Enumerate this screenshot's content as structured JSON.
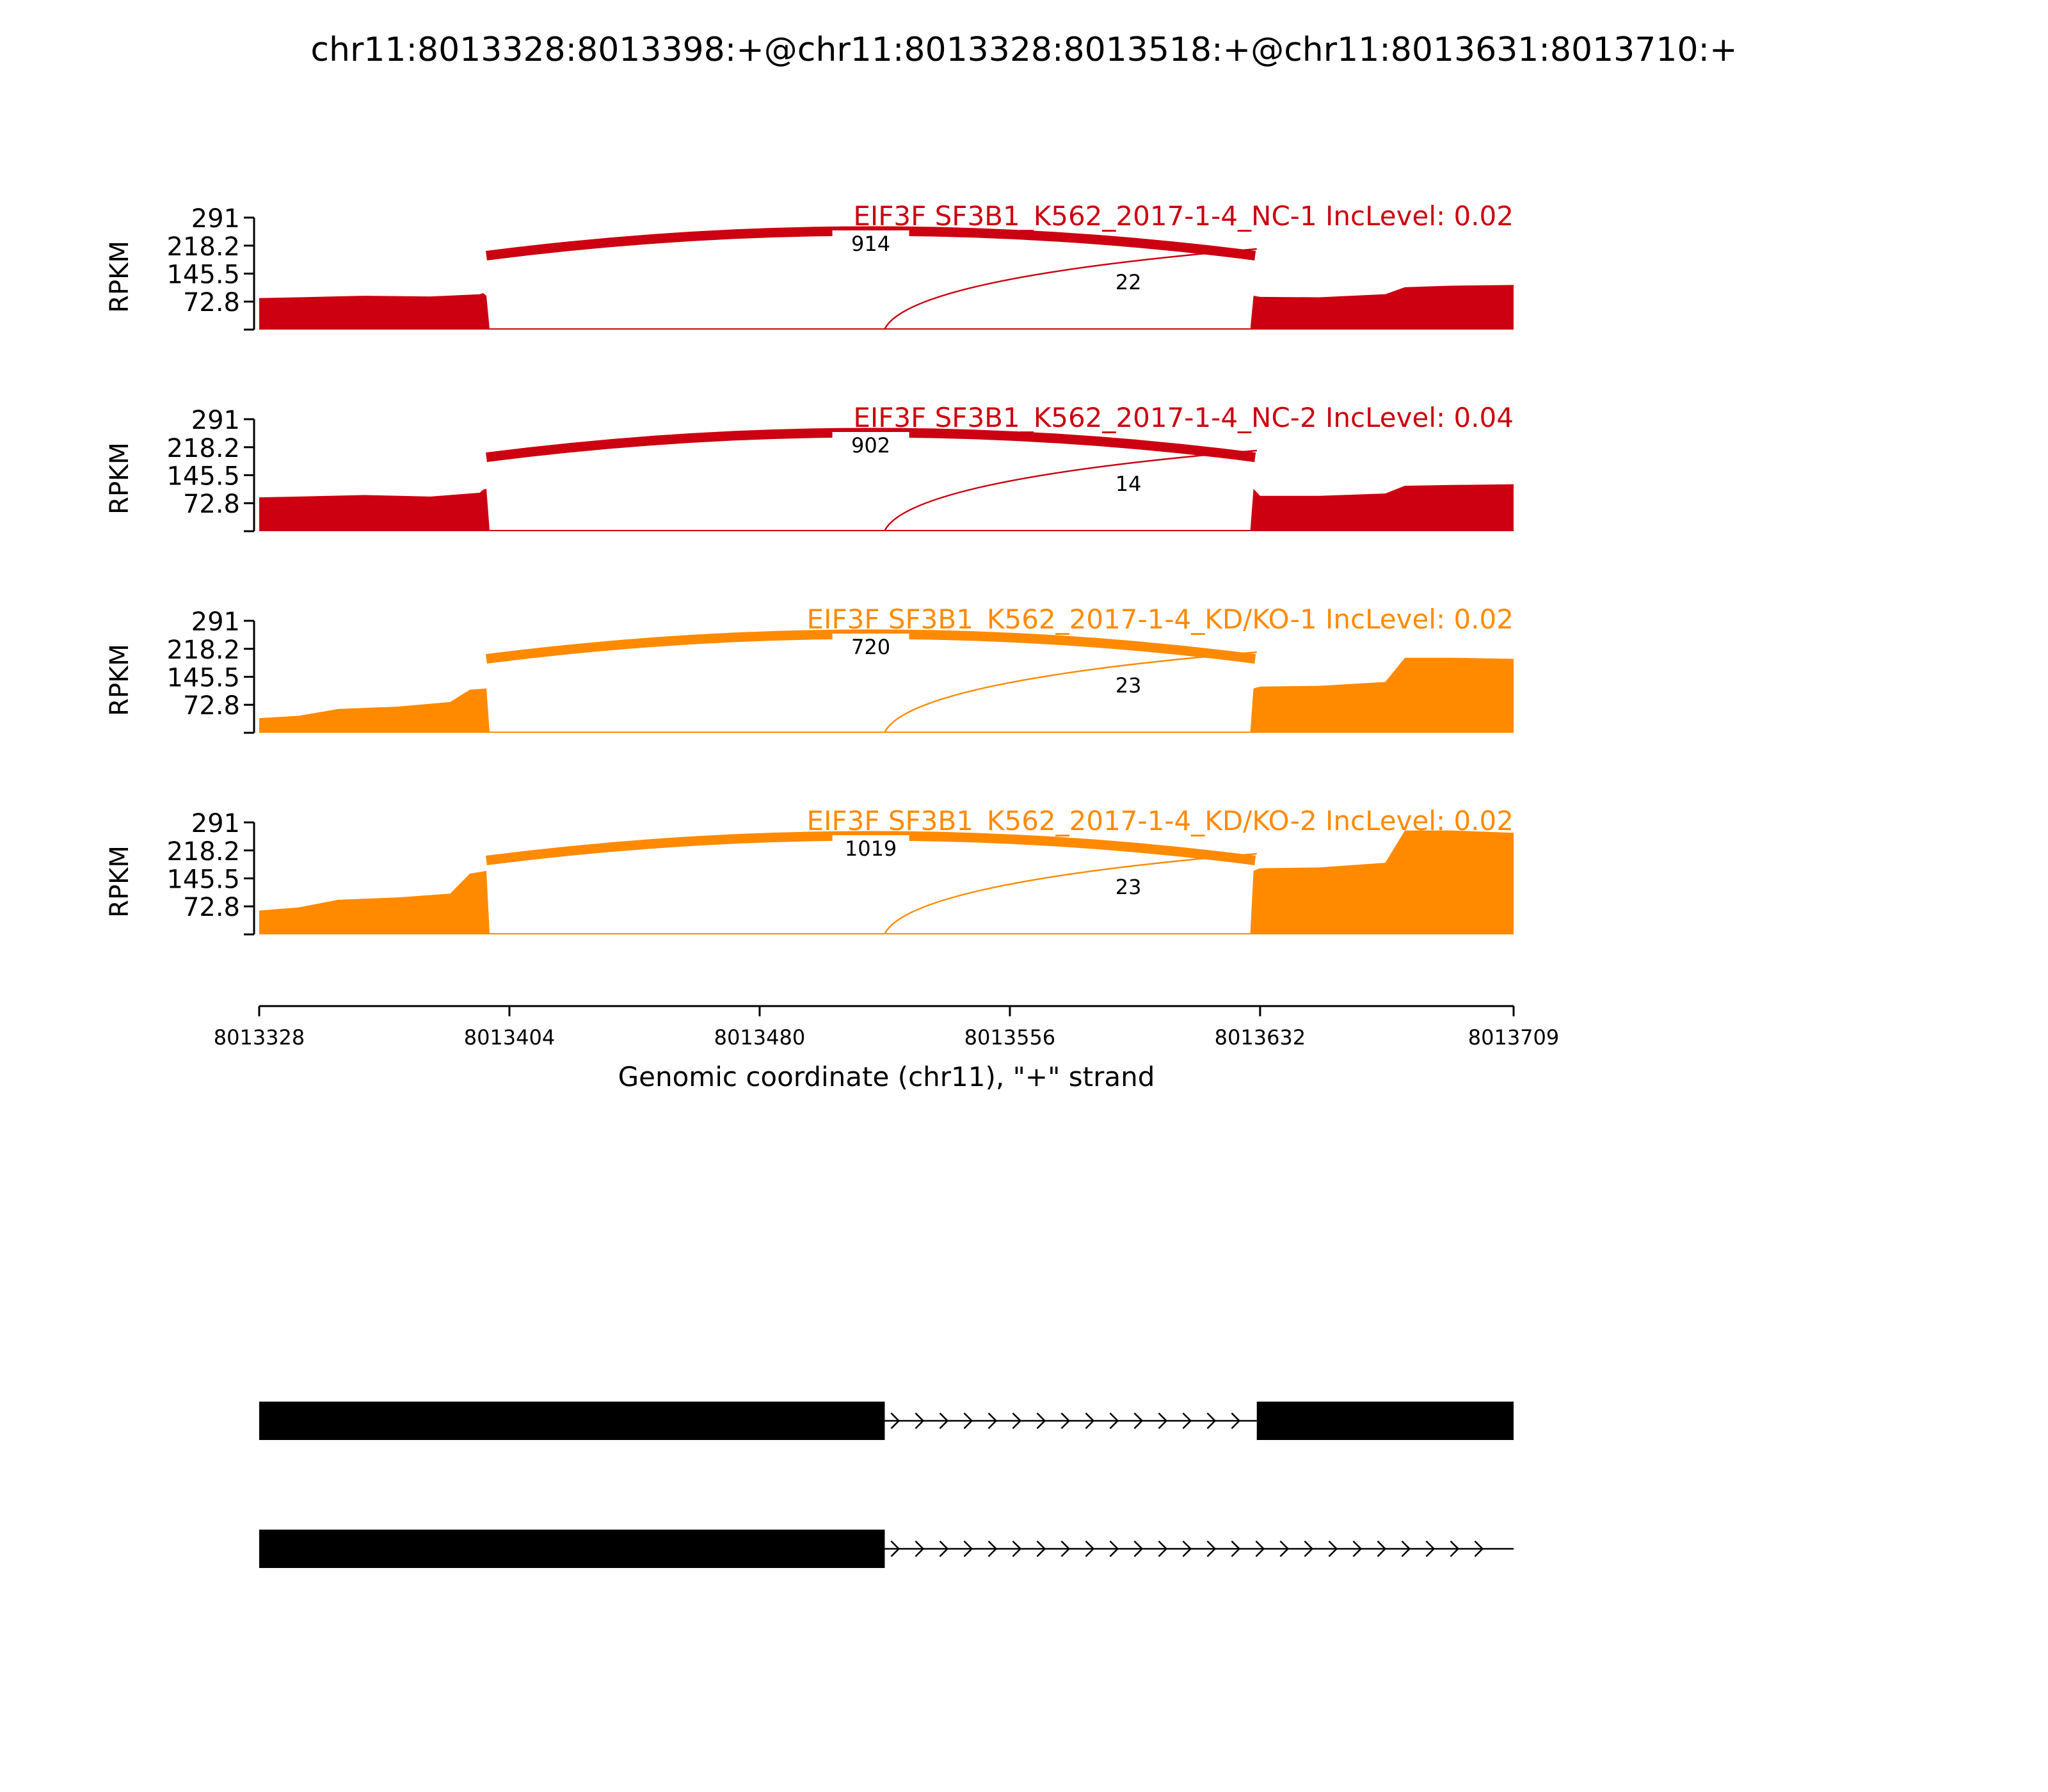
{
  "title": "chr11:8013328:8013398:+@chr11:8013328:8013518:+@chr11:8013631:8013710:+",
  "chart_data": {
    "type": "area",
    "x_axis": {
      "label": "Genomic coordinate (chr11), \"+\" strand",
      "range": [
        8013328,
        8013709
      ],
      "ticks": [
        8013328,
        8013404,
        8013480,
        8013556,
        8013632,
        8013709
      ],
      "tick_labels": [
        "8013328",
        "8013404",
        "8013480",
        "8013556",
        "8013632",
        "8013709"
      ]
    },
    "y_axis": {
      "label": "RPKM",
      "range": [
        0,
        291
      ],
      "ticks": [
        72.8,
        145.5,
        218.2,
        291
      ],
      "tick_labels": [
        "72.8",
        "145.5",
        "218.2",
        "291"
      ]
    },
    "tracks": [
      {
        "name": "EIF3F SF3B1_K562_2017-1-4_NC-1 IncLevel: 0.02",
        "color": "#cc0010",
        "coverage_x": [
          8013328,
          8013340,
          8013360,
          8013380,
          8013395,
          8013396,
          8013397,
          8013398,
          8013518,
          8013629,
          8013630,
          8013632,
          8013650,
          8013670,
          8013676,
          8013690,
          8013709
        ],
        "coverage_y": [
          82,
          84,
          88,
          86,
          92,
          95,
          88,
          0,
          0,
          0,
          88,
          85,
          84,
          92,
          110,
          114,
          116
        ],
        "junctions": [
          {
            "count": "914",
            "start": 8013398,
            "end": 8013631
          },
          {
            "count": "22",
            "start": 8013518,
            "end": 8013631
          }
        ]
      },
      {
        "name": "EIF3F SF3B1_K562_2017-1-4_NC-2 IncLevel: 0.04",
        "color": "#cc0010",
        "coverage_x": [
          8013328,
          8013340,
          8013360,
          8013380,
          8013395,
          8013396,
          8013397,
          8013398,
          8013518,
          8013629,
          8013630,
          8013632,
          8013650,
          8013670,
          8013676,
          8013690,
          8013709
        ],
        "coverage_y": [
          88,
          90,
          94,
          90,
          100,
          108,
          110,
          0,
          0,
          0,
          110,
          92,
          92,
          98,
          118,
          120,
          122
        ],
        "junctions": [
          {
            "count": "902",
            "start": 8013398,
            "end": 8013631
          },
          {
            "count": "14",
            "start": 8013518,
            "end": 8013631
          }
        ]
      },
      {
        "name": "EIF3F SF3B1_K562_2017-1-4_KD/KO-1 IncLevel: 0.02",
        "color": "#ff8a00",
        "coverage_x": [
          8013328,
          8013340,
          8013352,
          8013370,
          8013386,
          8013392,
          8013397,
          8013398,
          8013518,
          8013629,
          8013630,
          8013632,
          8013650,
          8013670,
          8013676,
          8013690,
          8013709
        ],
        "coverage_y": [
          38,
          44,
          62,
          68,
          80,
          112,
          115,
          0,
          0,
          0,
          115,
          120,
          122,
          132,
          195,
          195,
          192
        ],
        "junctions": [
          {
            "count": "720",
            "start": 8013398,
            "end": 8013631
          },
          {
            "count": "23",
            "start": 8013518,
            "end": 8013631
          }
        ]
      },
      {
        "name": "EIF3F SF3B1_K562_2017-1-4_KD/KO-2 IncLevel: 0.02",
        "color": "#ff8a00",
        "coverage_x": [
          8013328,
          8013340,
          8013352,
          8013370,
          8013386,
          8013392,
          8013397,
          8013398,
          8013518,
          8013629,
          8013630,
          8013632,
          8013650,
          8013670,
          8013676,
          8013690,
          8013709
        ],
        "coverage_y": [
          62,
          70,
          90,
          96,
          106,
          158,
          165,
          0,
          0,
          0,
          165,
          172,
          174,
          186,
          270,
          270,
          264
        ],
        "junctions": [
          {
            "count": "1019",
            "start": 8013398,
            "end": 8013631
          },
          {
            "count": "23",
            "start": 8013518,
            "end": 8013631
          }
        ]
      }
    ],
    "isoforms": [
      {
        "exons": [
          [
            8013328,
            8013518
          ],
          [
            8013631,
            8013709
          ]
        ],
        "introns": [
          [
            8013518,
            8013631
          ]
        ]
      },
      {
        "exons": [
          [
            8013328,
            8013518
          ]
        ],
        "introns": [
          [
            8013518,
            8013709
          ]
        ]
      }
    ]
  }
}
